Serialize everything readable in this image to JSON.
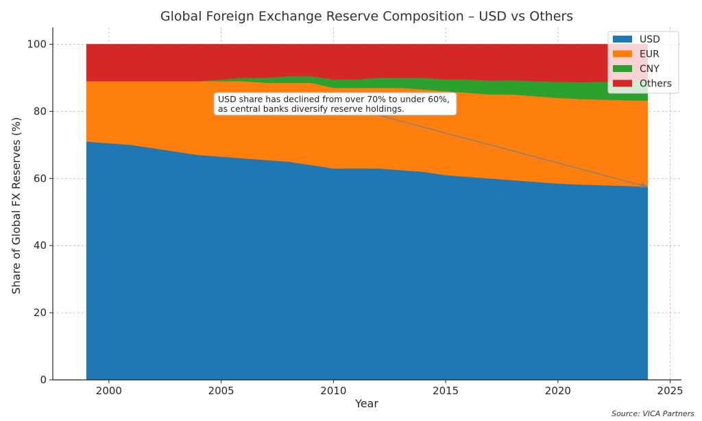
{
  "chart_data": {
    "type": "area",
    "stacked": true,
    "title": "Global Foreign Exchange Reserve Composition – USD vs Others",
    "xlabel": "Year",
    "ylabel": "Share of Global FX Reserves (%)",
    "xlim": [
      1997.5,
      2025.5
    ],
    "ylim": [
      0,
      105
    ],
    "xticks": [
      2000,
      2005,
      2010,
      2015,
      2020,
      2025
    ],
    "yticks": [
      0,
      20,
      40,
      60,
      80,
      100
    ],
    "grid": true,
    "legend_position": "top-right",
    "x": [
      1999,
      2000,
      2001,
      2002,
      2003,
      2004,
      2005,
      2006,
      2007,
      2008,
      2009,
      2010,
      2011,
      2012,
      2013,
      2014,
      2015,
      2016,
      2017,
      2018,
      2019,
      2020,
      2021,
      2022,
      2023,
      2024
    ],
    "series": [
      {
        "name": "USD",
        "color": "#1f77b4",
        "values": [
          71,
          70.5,
          70,
          69,
          68,
          67,
          66.5,
          66,
          65.5,
          65,
          64,
          63,
          63,
          63,
          62.5,
          62,
          61,
          60.5,
          60,
          59.5,
          59,
          58.5,
          58.2,
          58,
          57.8,
          57.5
        ]
      },
      {
        "name": "EUR",
        "color": "#ff7f0e",
        "values": [
          18,
          18.5,
          19,
          20,
          21,
          22,
          22.5,
          23,
          23,
          23.5,
          24.5,
          24,
          24,
          24,
          24.5,
          24.5,
          25,
          25,
          25,
          25.5,
          25.5,
          25.5,
          25.5,
          25.5,
          25.5,
          25.7
        ]
      },
      {
        "name": "CNY",
        "color": "#2ca02c",
        "values": [
          0,
          0,
          0,
          0,
          0,
          0,
          0.5,
          1,
          1.5,
          2,
          2,
          2.5,
          2.5,
          3,
          3,
          3.5,
          3.5,
          4,
          4.2,
          4.3,
          4.5,
          4.8,
          5,
          5.3,
          5.6,
          6
        ]
      },
      {
        "name": "Others",
        "color": "#d62728",
        "values": [
          11,
          11,
          11,
          11,
          11,
          11,
          10.5,
          10,
          10,
          9.5,
          9.5,
          10.5,
          10.5,
          10,
          10,
          10,
          10.5,
          10.5,
          10.8,
          10.7,
          11,
          11.2,
          11.3,
          11.2,
          11.1,
          10.8
        ]
      }
    ],
    "annotation": {
      "lines": [
        "USD share has declined from over 70% to under 60%,",
        "as central banks diversify reserve holdings."
      ],
      "arrow_to": {
        "x": 2024,
        "y": 57.5
      },
      "arrow_from": {
        "x": 2011.2,
        "y": 80.3
      }
    },
    "source": "Source: VICA Partners"
  }
}
